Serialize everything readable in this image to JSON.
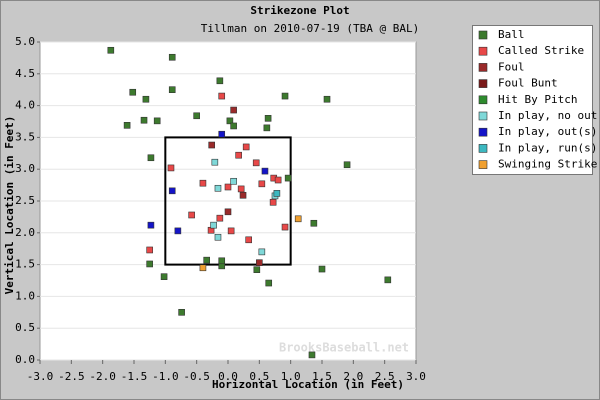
{
  "chart_data": {
    "type": "scatter",
    "title": "Strikezone Plot",
    "subtitle": "Tillman on 2010-07-19 (TBA @ BAL)",
    "x_label": "Horizontal Location (in Feet)",
    "y_label": "Vertical Location (in Feet)",
    "watermark": "BrooksBaseball.net",
    "xlim": [
      -3,
      3
    ],
    "ylim": [
      0,
      5
    ],
    "xticks": [
      {
        "value": -3,
        "label": "-3.0"
      },
      {
        "value": -2.5,
        "label": "-2.5"
      },
      {
        "value": -2,
        "label": "-2.0"
      },
      {
        "value": -1.5,
        "label": "-1.5"
      },
      {
        "value": -1,
        "label": "-1.0"
      },
      {
        "value": -0.5,
        "label": "-0.5"
      },
      {
        "value": 0,
        "label": "0.0"
      },
      {
        "value": 0.5,
        "label": "0.5"
      },
      {
        "value": 1,
        "label": "1.0"
      },
      {
        "value": 1.5,
        "label": "1.5"
      },
      {
        "value": 2,
        "label": "2.0"
      },
      {
        "value": 2.5,
        "label": "2.5"
      },
      {
        "value": 3,
        "label": "3.0"
      }
    ],
    "yticks": [
      {
        "value": 0,
        "label": "0.0"
      },
      {
        "value": 0.5,
        "label": "0.5"
      },
      {
        "value": 1,
        "label": "1.0"
      },
      {
        "value": 1.5,
        "label": "1.5"
      },
      {
        "value": 2,
        "label": "2.0"
      },
      {
        "value": 2.5,
        "label": "2.5"
      },
      {
        "value": 3,
        "label": "3.0"
      },
      {
        "value": 3.5,
        "label": "3.5"
      },
      {
        "value": 4,
        "label": "4.0"
      },
      {
        "value": 4.5,
        "label": "4.5"
      },
      {
        "value": 5,
        "label": "5.0"
      }
    ],
    "grid": true,
    "strike_zone": {
      "x": [
        -1,
        1
      ],
      "y": [
        1.5,
        3.5
      ]
    },
    "series": [
      {
        "name": "Ball",
        "color": "#3d7a2e",
        "x": [
          -1.87,
          -0.89,
          -1.52,
          -1.31,
          -0.89,
          -0.13,
          0.91,
          1.58,
          -1.61,
          -1.34,
          -1.13,
          -0.5,
          0.03,
          0.09,
          0.64,
          0.62,
          -1.23,
          1.9,
          0.96,
          1.37,
          -1.25,
          -1.02,
          -0.34,
          -0.1,
          -0.1,
          0.46,
          1.5,
          0.65,
          2.55,
          -0.74,
          1.34
        ],
        "y": [
          4.87,
          4.76,
          4.21,
          4.1,
          4.25,
          4.39,
          4.15,
          4.1,
          3.69,
          3.77,
          3.76,
          3.84,
          3.76,
          3.68,
          3.8,
          3.65,
          3.18,
          3.07,
          2.86,
          2.15,
          1.51,
          1.31,
          1.57,
          1.48,
          1.56,
          1.42,
          1.43,
          1.21,
          1.26,
          0.75,
          0.08
        ]
      },
      {
        "name": "Called Strike",
        "color": "#e84848",
        "x": [
          -0.1,
          -0.91,
          -1.25,
          0.29,
          0.17,
          -0.4,
          0.0,
          0.21,
          0.45,
          0.54,
          0.73,
          0.8,
          -0.58,
          -0.13,
          -0.27,
          0.05,
          0.33,
          0.91,
          0.72
        ],
        "y": [
          4.15,
          3.02,
          1.73,
          3.35,
          3.22,
          2.78,
          2.72,
          2.69,
          3.1,
          2.77,
          2.86,
          2.83,
          2.28,
          2.23,
          2.04,
          2.03,
          1.89,
          2.09,
          2.48
        ]
      },
      {
        "name": "Foul",
        "color": "#9a2a2a",
        "x": [
          0.09,
          -0.26,
          0.24,
          0.0,
          0.5
        ],
        "y": [
          3.93,
          3.38,
          2.59,
          2.33,
          1.53
        ]
      },
      {
        "name": "Foul Bunt",
        "color": "#7a1a1a",
        "x": [],
        "y": []
      },
      {
        "name": "Hit By Pitch",
        "color": "#2e8b2e",
        "x": [],
        "y": []
      },
      {
        "name": "In play, no out",
        "color": "#7fd8d8",
        "x": [
          -0.21,
          -0.16,
          0.09,
          0.75,
          -0.16,
          -0.23,
          0.54
        ],
        "y": [
          3.11,
          2.7,
          2.81,
          2.58,
          1.93,
          2.12,
          1.7
        ]
      },
      {
        "name": "In play, out(s)",
        "color": "#1414c8",
        "x": [
          -0.1,
          -0.89,
          -0.8,
          -1.23,
          0.59
        ],
        "y": [
          3.55,
          2.66,
          2.03,
          2.12,
          2.97
        ]
      },
      {
        "name": "In play, run(s)",
        "color": "#3cb8c0",
        "x": [
          0.78
        ],
        "y": [
          2.62
        ]
      },
      {
        "name": "Swinging Strike",
        "color": "#f0a030",
        "x": [
          1.12,
          -0.4
        ],
        "y": [
          2.22,
          1.45
        ]
      }
    ]
  }
}
